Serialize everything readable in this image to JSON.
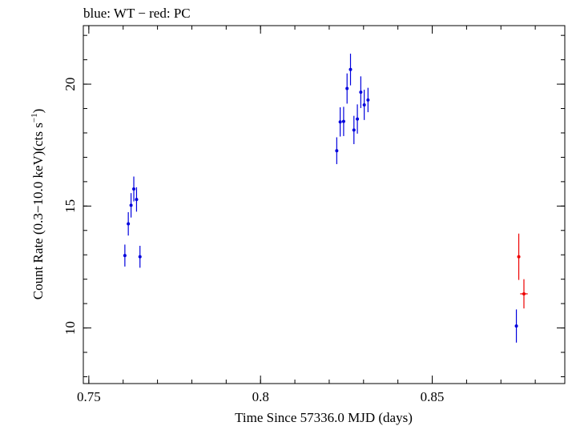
{
  "chart_data": {
    "type": "scatter",
    "title": "blue: WT − red: PC",
    "xlabel": "Time Since 57336.0 MJD (days)",
    "ylabel_main": "Count Rate (0.3−10.0 keV)(cts s",
    "ylabel_sup": "−1",
    "ylabel_end": ")",
    "xlim": [
      0.7484,
      0.8886
    ],
    "ylim": [
      7.72,
      22.4
    ],
    "x_ticks": [
      {
        "value": 0.75,
        "label": "0.75"
      },
      {
        "value": 0.8,
        "label": "0.8"
      },
      {
        "value": 0.85,
        "label": "0.85"
      }
    ],
    "y_ticks": [
      {
        "value": 10,
        "label": "10"
      },
      {
        "value": 15,
        "label": "15"
      },
      {
        "value": 20,
        "label": "20"
      }
    ],
    "x_minor_step": 0.01,
    "y_minor_step": 1,
    "grid": false,
    "series": [
      {
        "name": "WT",
        "color": "#0000dd",
        "points": [
          {
            "x": 0.7605,
            "y": 12.97,
            "yerr": 0.45,
            "xerr": 0.0003
          },
          {
            "x": 0.7615,
            "y": 14.27,
            "yerr": 0.48,
            "xerr": 0.0003
          },
          {
            "x": 0.7623,
            "y": 15.03,
            "yerr": 0.5,
            "xerr": 0.0003
          },
          {
            "x": 0.7631,
            "y": 15.7,
            "yerr": 0.51,
            "xerr": 0.0003
          },
          {
            "x": 0.7639,
            "y": 15.27,
            "yerr": 0.5,
            "xerr": 0.0003
          },
          {
            "x": 0.7649,
            "y": 12.92,
            "yerr": 0.45,
            "xerr": 0.0003
          },
          {
            "x": 0.8222,
            "y": 17.27,
            "yerr": 0.55,
            "xerr": 0.0003
          },
          {
            "x": 0.8232,
            "y": 18.45,
            "yerr": 0.6,
            "xerr": 0.0003
          },
          {
            "x": 0.8242,
            "y": 18.47,
            "yerr": 0.6,
            "xerr": 0.0003
          },
          {
            "x": 0.8252,
            "y": 19.82,
            "yerr": 0.62,
            "xerr": 0.0003
          },
          {
            "x": 0.8262,
            "y": 20.6,
            "yerr": 0.65,
            "xerr": 0.0003
          },
          {
            "x": 0.8272,
            "y": 18.12,
            "yerr": 0.58,
            "xerr": 0.0003
          },
          {
            "x": 0.8282,
            "y": 18.57,
            "yerr": 0.6,
            "xerr": 0.0003
          },
          {
            "x": 0.8292,
            "y": 19.67,
            "yerr": 0.65,
            "xerr": 0.0003
          },
          {
            "x": 0.8302,
            "y": 19.15,
            "yerr": 0.62,
            "xerr": 0.0003
          },
          {
            "x": 0.8313,
            "y": 19.35,
            "yerr": 0.5,
            "xerr": 0.0003
          },
          {
            "x": 0.8745,
            "y": 10.08,
            "yerr": 0.68,
            "xerr": 0.0003
          }
        ]
      },
      {
        "name": "PC",
        "color": "#ee0000",
        "points": [
          {
            "x": 0.8752,
            "y": 12.92,
            "yerr": 0.95,
            "xerr": 0.0004
          },
          {
            "x": 0.8767,
            "y": 11.4,
            "yerr": 0.6,
            "xerr": 0.0011
          }
        ]
      }
    ]
  }
}
